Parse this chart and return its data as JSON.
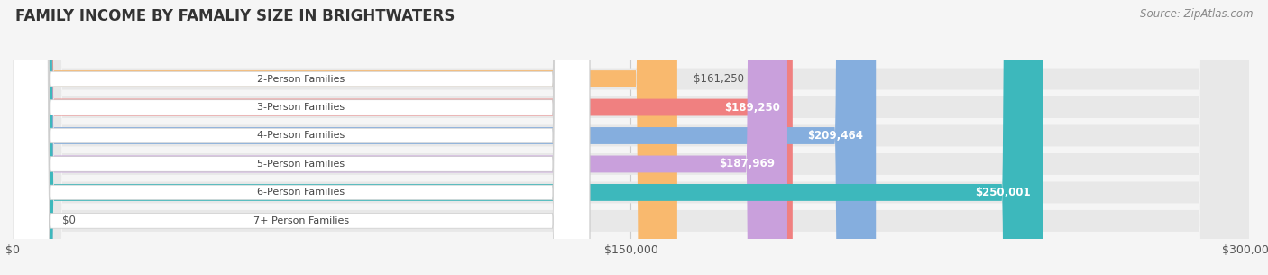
{
  "title": "FAMILY INCOME BY FAMALIY SIZE IN BRIGHTWATERS",
  "source": "Source: ZipAtlas.com",
  "categories": [
    "2-Person Families",
    "3-Person Families",
    "4-Person Families",
    "5-Person Families",
    "6-Person Families",
    "7+ Person Families"
  ],
  "values": [
    161250,
    189250,
    209464,
    187969,
    250001,
    0
  ],
  "bar_colors": [
    "#F9B96E",
    "#F08080",
    "#85AEDE",
    "#C9A0DC",
    "#3DB8BC",
    "#BFC8F0"
  ],
  "background_color": "#f5f5f5",
  "bar_bg_color": "#e8e8e8",
  "xlim": [
    0,
    300000
  ],
  "xticks": [
    0,
    150000,
    300000
  ],
  "xtick_labels": [
    "$0",
    "$150,000",
    "$300,000"
  ],
  "title_fontsize": 12,
  "label_fontsize": 8.5,
  "category_fontsize": 8,
  "source_fontsize": 8.5
}
